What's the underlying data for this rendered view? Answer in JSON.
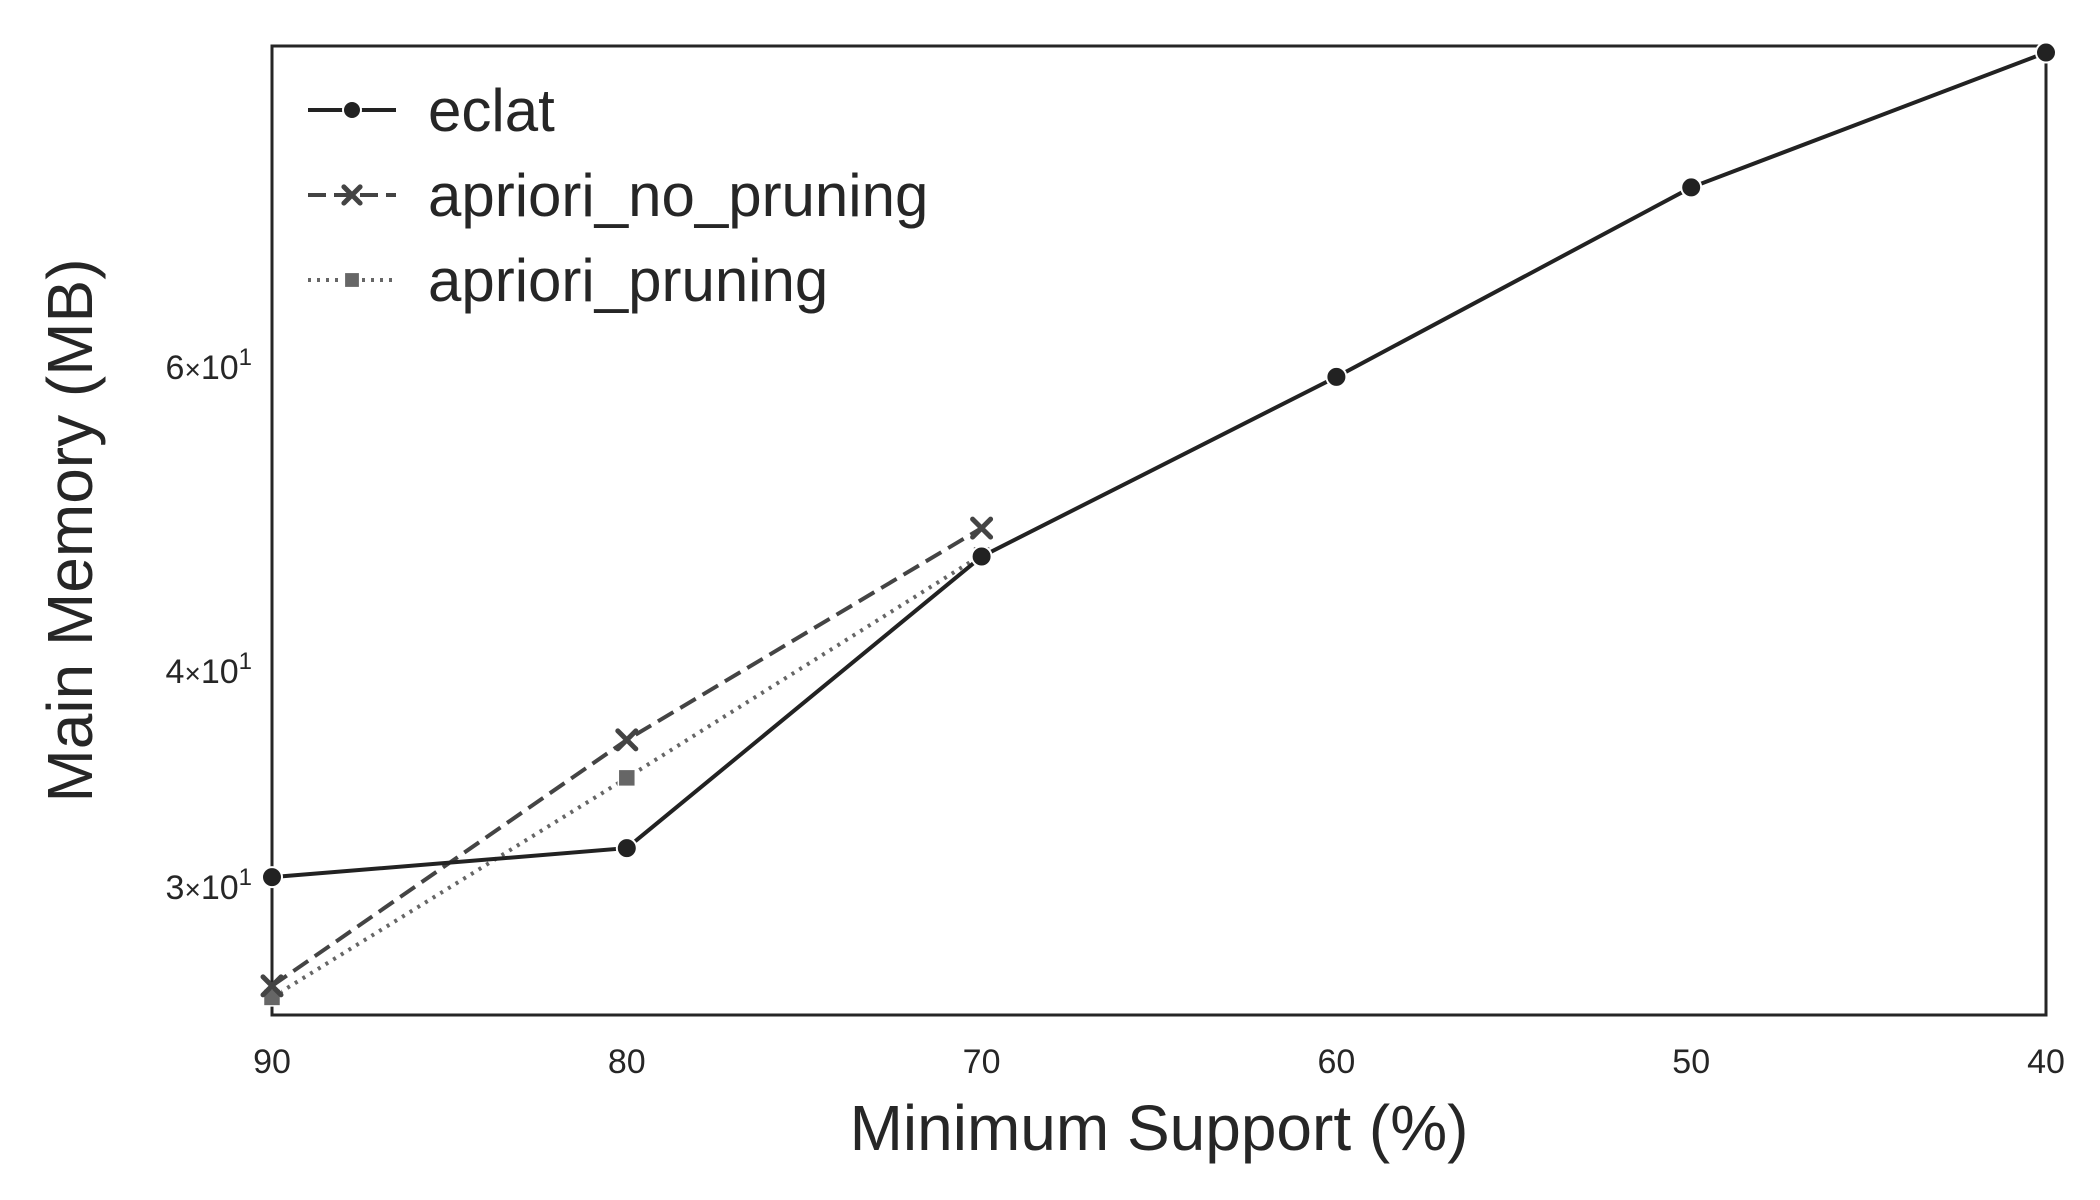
{
  "chart_data": {
    "type": "line",
    "title": "",
    "xlabel": "Minimum Support (%)",
    "ylabel": "Main Memory (MB)",
    "x_reversed": true,
    "xlim": [
      90,
      40
    ],
    "xticks": [
      90,
      80,
      70,
      60,
      50,
      40
    ],
    "yscale": "log",
    "ylim": [
      25.3,
      92
    ],
    "yticks": [
      {
        "value": 30,
        "mantissa": "3",
        "base": "10",
        "exponent": "1"
      },
      {
        "value": 40,
        "mantissa": "4",
        "base": "10",
        "exponent": "1"
      },
      {
        "value": 60,
        "mantissa": "6",
        "base": "10",
        "exponent": "1"
      }
    ],
    "grid": false,
    "legend_position": "top-left",
    "series": [
      {
        "name": "eclat",
        "x": [
          90,
          80,
          70,
          60,
          50,
          40
        ],
        "y": [
          30.4,
          31.6,
          46.6,
          59.2,
          76.2,
          91.2
        ],
        "color": "#222222",
        "dash": "solid",
        "marker": "circle"
      },
      {
        "name": "apriori_no_pruning",
        "x": [
          90,
          80,
          70
        ],
        "y": [
          26.3,
          36.5,
          48.4
        ],
        "color": "#444444",
        "dash": "dashed",
        "marker": "x"
      },
      {
        "name": "apriori_pruning",
        "x": [
          90,
          80,
          70
        ],
        "y": [
          25.9,
          34.7,
          46.7
        ],
        "color": "#666666",
        "dash": "dotted",
        "marker": "square"
      }
    ]
  }
}
